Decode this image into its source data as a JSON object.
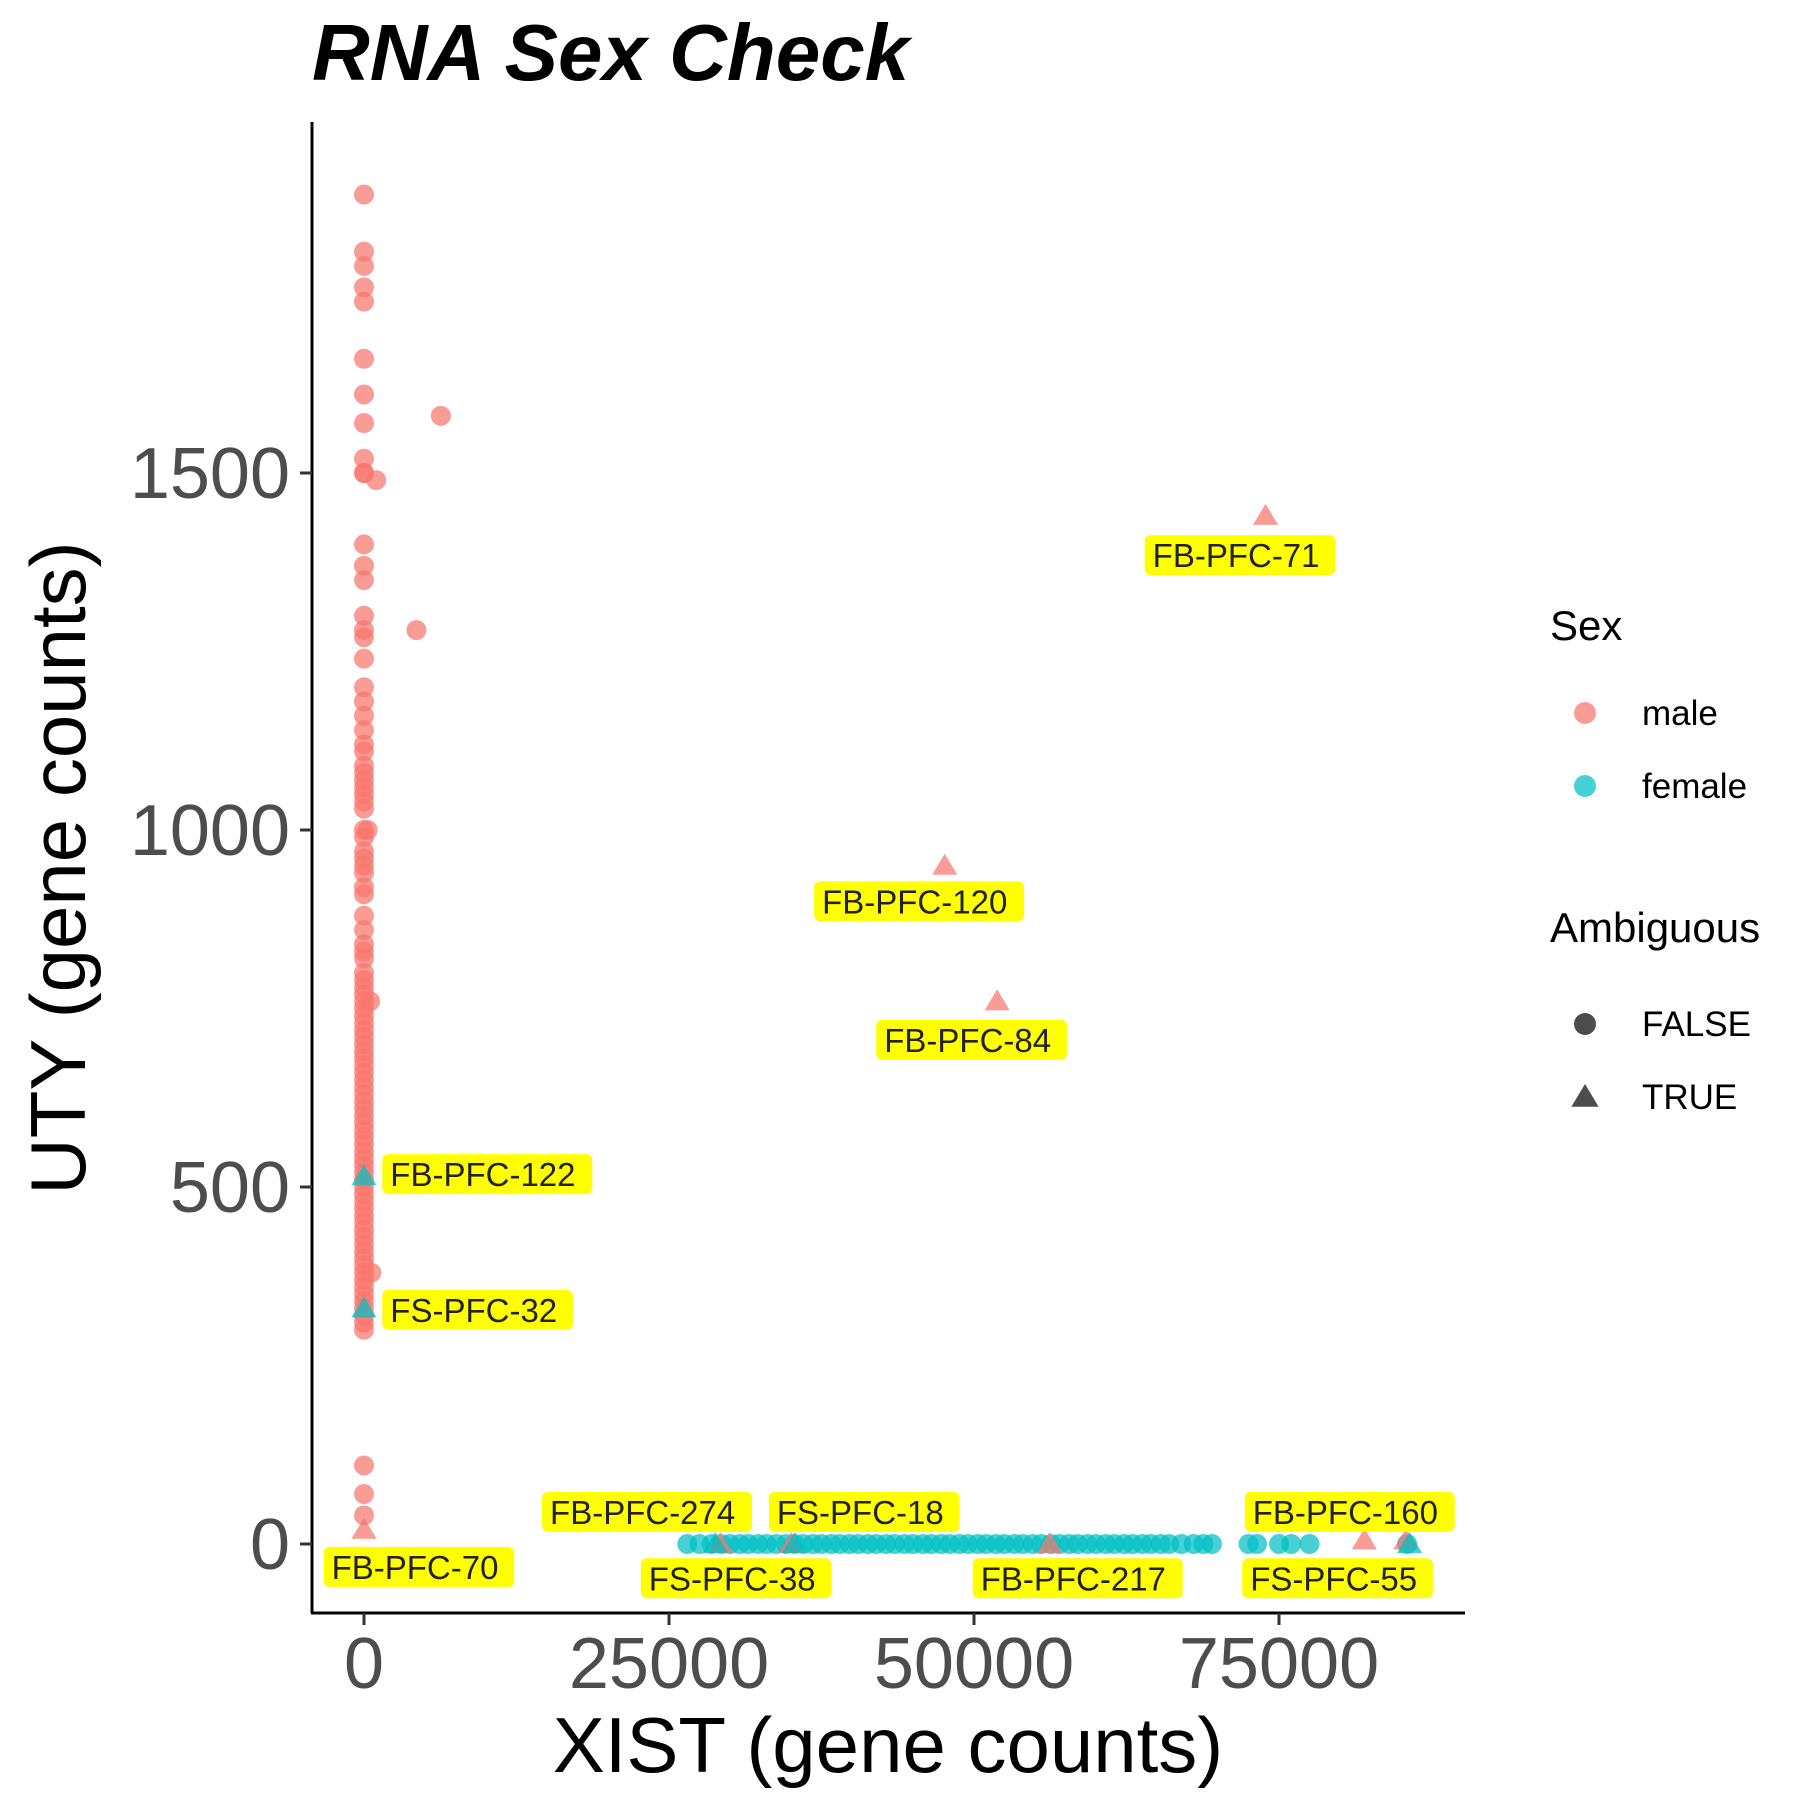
{
  "chart_data": {
    "type": "scatter",
    "title": "RNA Sex Check",
    "xlabel": "XIST (gene counts)",
    "ylabel": "UTY (gene counts)",
    "xlim": [
      -8500,
      180000
    ],
    "ylim": [
      -190,
      1950
    ],
    "x_ticks": [
      0,
      25000,
      50000,
      75000
    ],
    "x_tick_labels": [
      "0",
      "25000",
      "50000",
      "75000"
    ],
    "y_ticks": [
      0,
      500,
      1000,
      1500
    ],
    "y_tick_labels": [
      "0",
      "500",
      "1000",
      "1500"
    ],
    "grid": false,
    "legend_position": "right",
    "colors": {
      "male": "#F8766D",
      "female": "#00BFC4",
      "legend_shape": "#4d4d4d",
      "label_fill": "#FFFF00"
    },
    "legends": [
      {
        "title": "Sex",
        "items": [
          {
            "label": "male",
            "kind": "color",
            "value": "male"
          },
          {
            "label": "female",
            "kind": "color",
            "value": "female"
          }
        ]
      },
      {
        "title": "Ambiguous",
        "items": [
          {
            "label": "FALSE",
            "kind": "shape",
            "value": "circle"
          },
          {
            "label": "TRUE",
            "kind": "shape",
            "value": "triangle"
          }
        ]
      }
    ],
    "series": [
      {
        "name": "male",
        "ambiguous": false,
        "shape": "circle",
        "x": [
          0,
          0,
          0,
          0,
          0,
          0,
          0,
          0,
          0,
          0,
          0,
          0,
          0,
          0,
          0,
          0,
          0,
          0,
          0,
          0,
          0,
          0,
          0,
          0,
          0,
          0,
          0,
          0,
          0,
          0,
          0,
          0,
          0,
          0,
          0,
          0,
          0,
          0,
          0,
          0,
          0,
          0,
          0,
          0,
          0,
          0,
          0,
          0,
          0,
          0,
          0,
          0,
          0,
          0,
          0,
          0,
          0,
          0,
          0,
          0,
          0,
          0,
          0,
          0,
          0,
          0,
          0,
          0,
          0,
          0,
          0,
          0,
          0,
          0,
          0,
          0,
          0,
          0,
          0,
          0,
          0,
          0,
          0,
          0,
          0,
          0,
          0,
          0,
          0,
          0,
          0,
          0,
          0,
          0,
          0,
          0,
          0,
          0,
          6300,
          4300,
          1000,
          300,
          500,
          600
        ],
        "y": [
          1890,
          1810,
          1790,
          1760,
          1740,
          1660,
          1610,
          1570,
          1520,
          1500,
          1500,
          1400,
          1370,
          1350,
          1300,
          1280,
          1270,
          1240,
          1200,
          1180,
          1160,
          1140,
          1120,
          1110,
          1090,
          1080,
          1070,
          1060,
          1050,
          1040,
          1030,
          1000,
          990,
          970,
          960,
          950,
          940,
          920,
          910,
          880,
          860,
          840,
          830,
          820,
          800,
          790,
          780,
          770,
          760,
          750,
          740,
          730,
          720,
          710,
          700,
          690,
          680,
          670,
          660,
          650,
          640,
          630,
          620,
          610,
          600,
          590,
          580,
          570,
          560,
          550,
          540,
          530,
          520,
          510,
          500,
          490,
          480,
          470,
          460,
          450,
          440,
          430,
          420,
          410,
          400,
          390,
          380,
          370,
          360,
          350,
          340,
          330,
          320,
          310,
          300,
          110,
          70,
          40,
          1580,
          1280,
          1490,
          1000,
          760,
          380
        ]
      },
      {
        "name": "female",
        "ambiguous": false,
        "shape": "circle",
        "x": [
          26500,
          27500,
          28500,
          29300,
          30000,
          30800,
          31500,
          32300,
          33000,
          33800,
          34600,
          35300,
          36000,
          36800,
          37500,
          38300,
          39000,
          39800,
          40500,
          41300,
          42000,
          42800,
          43500,
          44300,
          45000,
          45800,
          46500,
          47300,
          48000,
          48800,
          49500,
          50300,
          51000,
          51800,
          52500,
          53300,
          54000,
          54800,
          55500,
          56300,
          57000,
          57800,
          58500,
          59300,
          60000,
          60800,
          61500,
          62300,
          63000,
          63800,
          64500,
          65300,
          66000,
          67000,
          68000,
          68800,
          69500,
          72500,
          73200,
          75000,
          76000,
          77500,
          85500
        ],
        "y": [
          0,
          0,
          0,
          0,
          0,
          0,
          0,
          0,
          0,
          0,
          0,
          0,
          0,
          0,
          0,
          0,
          0,
          0,
          0,
          0,
          0,
          0,
          0,
          0,
          0,
          0,
          0,
          0,
          0,
          0,
          0,
          0,
          0,
          0,
          0,
          0,
          0,
          0,
          0,
          0,
          0,
          0,
          0,
          0,
          0,
          0,
          0,
          0,
          0,
          0,
          0,
          0,
          0,
          0,
          0,
          0,
          0,
          0,
          0,
          0,
          0,
          0,
          0
        ]
      },
      {
        "name": "male",
        "ambiguous": true,
        "shape": "triangle",
        "x": [
          73900,
          47600,
          51900,
          0,
          82000,
          85400,
          56200,
          29200,
          35000
        ],
        "y": [
          1440,
          950,
          760,
          20,
          5,
          5,
          0,
          0,
          0
        ]
      },
      {
        "name": "female",
        "ambiguous": true,
        "shape": "triangle",
        "x": [
          0,
          0,
          28800,
          35300,
          85700
        ],
        "y": [
          330,
          515,
          0,
          0,
          0
        ]
      }
    ],
    "annotations": [
      {
        "text": "FB-PFC-71",
        "x": 73900,
        "y": 1440,
        "lx": 71800,
        "ly": 1385,
        "anchor": "middle"
      },
      {
        "text": "FB-PFC-120",
        "x": 47600,
        "y": 950,
        "lx": 45500,
        "ly": 900,
        "anchor": "middle"
      },
      {
        "text": "FB-PFC-84",
        "x": 51900,
        "y": 760,
        "lx": 49800,
        "ly": 706,
        "anchor": "middle"
      },
      {
        "text": "FB-PFC-122",
        "x": 0,
        "y": 515,
        "lx": 1500,
        "ly": 518,
        "anchor": "start"
      },
      {
        "text": "FS-PFC-32",
        "x": 0,
        "y": 330,
        "lx": 1500,
        "ly": 328,
        "anchor": "start"
      },
      {
        "text": "FB-PFC-70",
        "x": 0,
        "y": 20,
        "lx": 4500,
        "ly": -32,
        "anchor": "middle"
      },
      {
        "text": "FB-PFC-274",
        "x": 29200,
        "y": 0,
        "lx": 23200,
        "ly": 45,
        "anchor": "middle"
      },
      {
        "text": "FS-PFC-18",
        "x": 35300,
        "y": 0,
        "lx": 41000,
        "ly": 45,
        "anchor": "middle"
      },
      {
        "text": "FS-PFC-38",
        "x": 28800,
        "y": 0,
        "lx": 30500,
        "ly": -48,
        "anchor": "middle"
      },
      {
        "text": "FB-PFC-217",
        "x": 56200,
        "y": 0,
        "lx": 58500,
        "ly": -48,
        "anchor": "middle"
      },
      {
        "text": "FB-PFC-160",
        "x": 82000,
        "y": 5,
        "lx": 80800,
        "ly": 45,
        "anchor": "middle"
      },
      {
        "text": "FS-PFC-55",
        "x": 85400,
        "y": 5,
        "lx": 79800,
        "ly": -48,
        "anchor": "middle"
      }
    ]
  }
}
